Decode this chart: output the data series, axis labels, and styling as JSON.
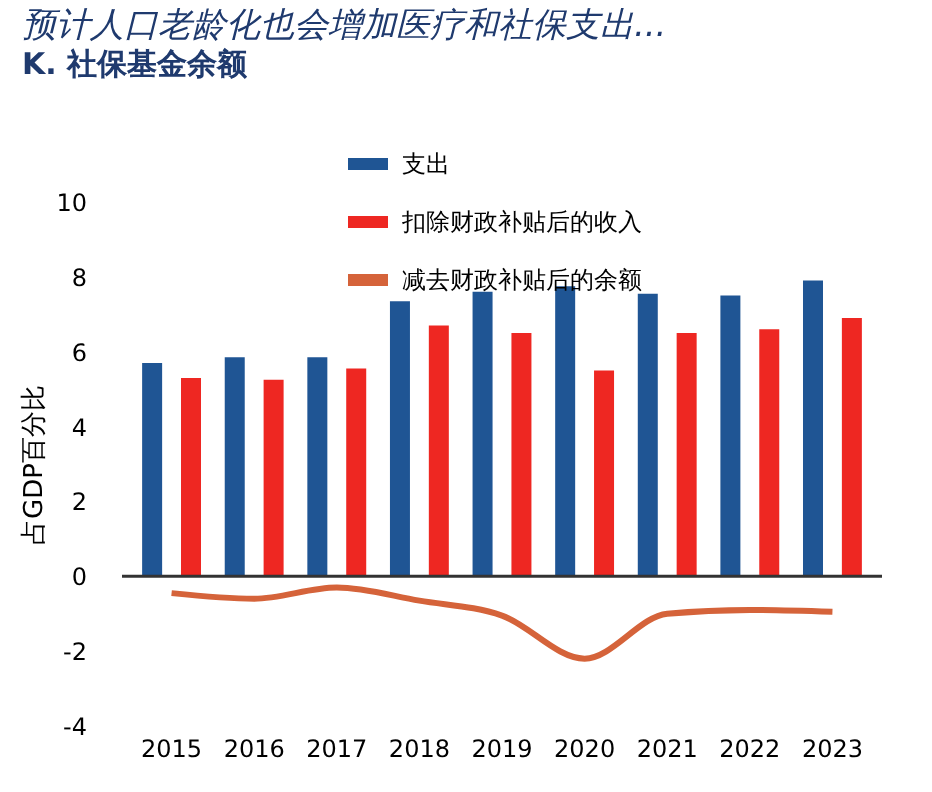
{
  "chart_data": {
    "type": "bar",
    "title": "预计人口老龄化也会增加医疗和社保支出...",
    "subtitle": "K. 社保基金余额",
    "ylabel": "占GDP百分比",
    "categories": [
      "2015",
      "2016",
      "2017",
      "2018",
      "2019",
      "2020",
      "2021",
      "2022",
      "2023"
    ],
    "series": [
      {
        "name": "支出",
        "color": "#1f5594",
        "values": [
          5.7,
          5.85,
          5.85,
          7.35,
          7.6,
          7.75,
          7.55,
          7.5,
          7.9
        ]
      },
      {
        "name": "扣除财政补贴后的收入",
        "color": "#ee2722",
        "values": [
          5.3,
          5.25,
          5.55,
          6.7,
          6.5,
          5.5,
          6.5,
          6.6,
          6.9
        ]
      },
      {
        "name": "减去财政补贴后的余额",
        "type": "line",
        "color": "#d5633a",
        "values": [
          -0.45,
          -0.6,
          -0.3,
          -0.65,
          -1.05,
          -2.2,
          -1.0,
          -0.9,
          -0.95
        ]
      }
    ],
    "ylim": [
      -4,
      10
    ],
    "yticks": [
      -4,
      -2,
      0,
      2,
      4,
      6,
      8,
      10
    ],
    "grid": false,
    "legend": "top",
    "ref_lines": [
      {
        "axis": "y",
        "value": 0,
        "color": "#333333"
      }
    ]
  }
}
